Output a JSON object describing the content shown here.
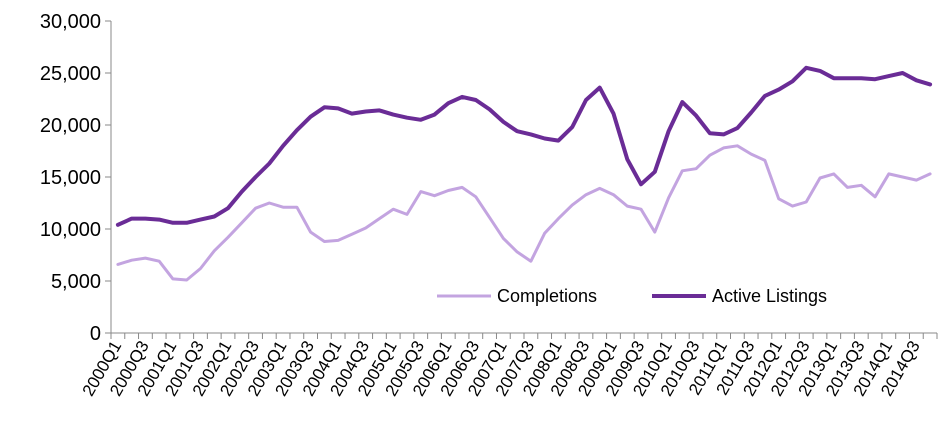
{
  "chart_data": {
    "type": "line",
    "title": "",
    "xlabel": "",
    "ylabel": "",
    "ylim": [
      0,
      30000
    ],
    "yticks": [
      "0",
      "5,000",
      "10,000",
      "15,000",
      "20,000",
      "25,000",
      "30,000"
    ],
    "grid": false,
    "legend_position": "bottom-right inside plot",
    "categories": [
      "2000Q1",
      "2000Q2",
      "2000Q3",
      "2000Q4",
      "2001Q1",
      "2001Q2",
      "2001Q3",
      "2001Q4",
      "2002Q1",
      "2002Q2",
      "2002Q3",
      "2002Q4",
      "2003Q1",
      "2003Q2",
      "2003Q3",
      "2003Q4",
      "2004Q1",
      "2004Q2",
      "2004Q3",
      "2004Q4",
      "2005Q1",
      "2005Q2",
      "2005Q3",
      "2005Q4",
      "2006Q1",
      "2006Q2",
      "2006Q3",
      "2006Q4",
      "2007Q1",
      "2007Q2",
      "2007Q3",
      "2007Q4",
      "2008Q1",
      "2008Q2",
      "2008Q3",
      "2008Q4",
      "2009Q1",
      "2009Q2",
      "2009Q3",
      "2009Q4",
      "2010Q1",
      "2010Q2",
      "2010Q3",
      "2010Q4",
      "2011Q1",
      "2011Q2",
      "2011Q3",
      "2011Q4",
      "2012Q1",
      "2012Q2",
      "2012Q3",
      "2012Q4",
      "2013Q1",
      "2013Q2",
      "2013Q3",
      "2013Q4",
      "2014Q1",
      "2014Q2",
      "2014Q3",
      "2014Q4"
    ],
    "visible_x_labels": [
      "2000Q1",
      "2000Q3",
      "2001Q1",
      "2001Q3",
      "2002Q1",
      "2002Q3",
      "2003Q1",
      "2003Q3",
      "2004Q1",
      "2004Q3",
      "2005Q1",
      "2005Q3",
      "2006Q1",
      "2006Q3",
      "2007Q1",
      "2007Q3",
      "2008Q1",
      "2008Q3",
      "2009Q1",
      "2009Q3",
      "2010Q1",
      "2010Q3",
      "2011Q1",
      "2011Q3",
      "2012Q1",
      "2012Q3",
      "2013Q1",
      "2013Q3",
      "2014Q1",
      "2014Q3"
    ],
    "series": [
      {
        "name": "Completions",
        "color": "#c3a4e0",
        "values": [
          6600,
          7000,
          7200,
          6900,
          5200,
          5100,
          6200,
          7900,
          9200,
          10600,
          12000,
          12500,
          12100,
          12100,
          9700,
          8800,
          8900,
          9500,
          10100,
          11000,
          11900,
          11400,
          13600,
          13200,
          13700,
          14000,
          13100,
          11100,
          9100,
          7800,
          6900,
          9600,
          11000,
          12300,
          13300,
          13900,
          13300,
          12200,
          11900,
          9700,
          13000,
          15600,
          15800,
          17100,
          17800,
          18000,
          17200,
          16600,
          12900,
          12200,
          12600,
          14900,
          15300,
          14000,
          14200,
          13100,
          15300,
          15000,
          14700,
          15300
        ]
      },
      {
        "name": "Active Listings",
        "color": "#6a2c96",
        "values": [
          10400,
          11000,
          11000,
          10900,
          10600,
          10600,
          10900,
          11200,
          12000,
          13600,
          15000,
          16300,
          18000,
          19500,
          20800,
          21700,
          21600,
          21100,
          21300,
          21400,
          21000,
          20700,
          20500,
          21000,
          22100,
          22700,
          22400,
          21500,
          20300,
          19400,
          19100,
          18700,
          18500,
          19800,
          22400,
          23600,
          21100,
          16700,
          14300,
          15500,
          19400,
          22200,
          20900,
          19200,
          19100,
          19700,
          21200,
          22800,
          23400,
          24200,
          25500,
          25200,
          24500,
          24500,
          24500,
          24400,
          24700,
          25000,
          24300,
          23900
        ]
      }
    ]
  }
}
